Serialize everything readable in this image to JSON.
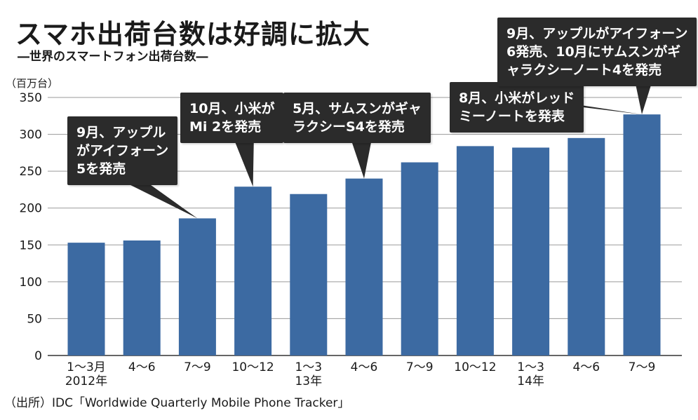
{
  "title": "スマホ出荷台数は好調に拡大",
  "subtitle": "―世界のスマートフォン出荷台数―",
  "source": "（出所）IDC「Worldwide Quarterly Mobile Phone Tracker」",
  "colors": {
    "bar": "#3c6aa2",
    "grid": "#9a9a9a",
    "annotation": "#2b2b2b"
  },
  "chart_data": {
    "type": "bar",
    "ylabel": "（百万台）",
    "ylim": [
      0,
      350
    ],
    "yticks": [
      0,
      50,
      100,
      150,
      200,
      250,
      300,
      350
    ],
    "grid": true,
    "categories": [
      {
        "label": "1～3月",
        "sub": "2012年"
      },
      {
        "label": "4～6",
        "sub": ""
      },
      {
        "label": "7～9",
        "sub": ""
      },
      {
        "label": "10～12",
        "sub": ""
      },
      {
        "label": "1～3",
        "sub": "13年"
      },
      {
        "label": "4～6",
        "sub": ""
      },
      {
        "label": "7～9",
        "sub": ""
      },
      {
        "label": "10～12",
        "sub": ""
      },
      {
        "label": "1～3",
        "sub": "14年"
      },
      {
        "label": "4～6",
        "sub": ""
      },
      {
        "label": "7～9",
        "sub": ""
      }
    ],
    "values": [
      153,
      156,
      186,
      229,
      219,
      240,
      262,
      284,
      282,
      295,
      327
    ],
    "annotations": [
      {
        "index": 2,
        "text": "9月、アップル\nがアイフォーン\n5を発売"
      },
      {
        "index": 3,
        "text": "10月、小米が\nMi 2を発売"
      },
      {
        "index": 5,
        "text": "5月、サムスンがギャ\nラクシーS4を発売"
      },
      {
        "index": 10,
        "text": "8月、小米がレッド\nミーノートを発表"
      },
      {
        "index": 10,
        "text": "9月、アップルがアイフォーン\n6発売、10月にサムスンがギ\nャラクシーノート4を発売"
      }
    ]
  }
}
